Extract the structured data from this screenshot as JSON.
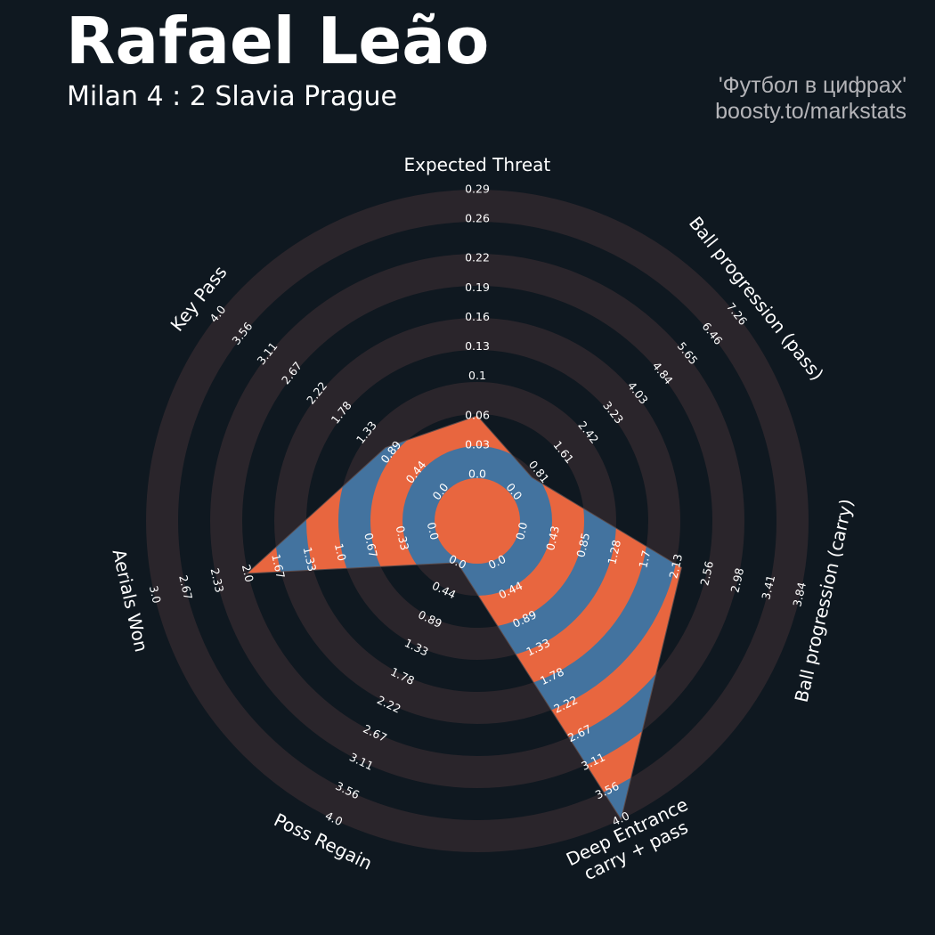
{
  "chart_data": {
    "type": "radar",
    "title": "Rafael Leão",
    "subtitle": "Milan 4 : 2 Slavia Prague",
    "credits": [
      "'Футбол в цифрах'",
      "boosty.to/markstats"
    ],
    "categories": [
      "Expected Threat",
      "Ball progression (pass)",
      "Ball progression (carry)",
      "Deep Entrance\ncarry + pass",
      "Poss Regain",
      "Aerials Won",
      "Key Pass"
    ],
    "values": [
      0.06,
      0.6,
      2.2,
      4.0,
      0,
      2.0,
      1.0
    ],
    "lims": [
      [
        0,
        0.29
      ],
      [
        0,
        7.26
      ],
      [
        0,
        3.84
      ],
      [
        0,
        4
      ],
      [
        0,
        4
      ],
      [
        0,
        3
      ],
      [
        0,
        4
      ]
    ],
    "ticks": [
      [
        {
          "value": 0,
          "label": "0.0"
        },
        0.03,
        0.06,
        {
          "value": 0.1,
          "label": "0.1"
        },
        0.13,
        0.16,
        0.19,
        0.22,
        0.26,
        0.29
      ],
      [
        {
          "value": 0,
          "label": "0.0"
        },
        0.81,
        1.61,
        2.42,
        3.23,
        4.03,
        4.84,
        5.65,
        6.46,
        7.26
      ],
      [
        {
          "value": 0,
          "label": "0.0"
        },
        0.43,
        0.85,
        1.28,
        1.7,
        2.13,
        2.56,
        2.98,
        3.41,
        3.84
      ],
      [
        {
          "value": 0,
          "label": "0.0"
        },
        0.44,
        0.89,
        1.33,
        1.78,
        2.22,
        2.67,
        3.11,
        3.56,
        {
          "value": 4,
          "label": "4.0"
        }
      ],
      [
        {
          "value": 0,
          "label": "0.0"
        },
        0.44,
        0.89,
        1.33,
        1.78,
        2.22,
        2.67,
        3.11,
        3.56,
        {
          "value": 4,
          "label": "4.0"
        }
      ],
      [
        {
          "value": 0,
          "label": "0.0"
        },
        0.33,
        0.67,
        {
          "value": 1,
          "label": "1.0"
        },
        1.33,
        1.67,
        {
          "value": 2,
          "label": "2.0"
        },
        2.33,
        2.67,
        {
          "value": 3,
          "label": "3.0"
        }
      ],
      [
        {
          "value": 0,
          "label": "0.0"
        },
        0.44,
        0.89,
        1.33,
        1.78,
        2.22,
        2.67,
        3.11,
        3.56,
        {
          "value": 4,
          "label": "4.0"
        }
      ]
    ],
    "colors": {
      "background": "#0f1820",
      "rings": "#2a252b",
      "fill": "#43739f",
      "fill_alt": "#e8663f"
    }
  }
}
